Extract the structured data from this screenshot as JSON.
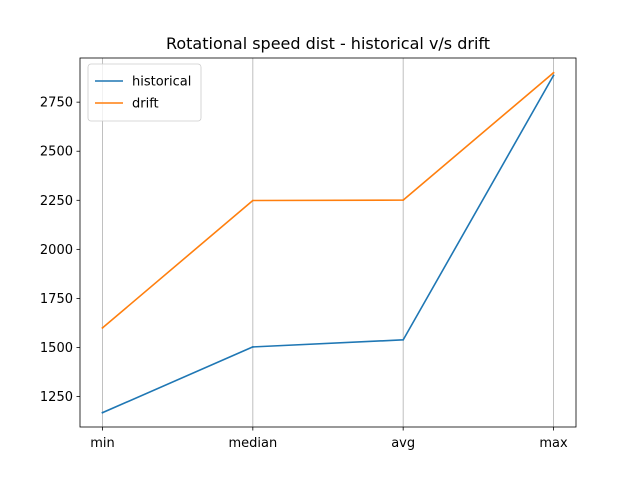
{
  "chart_data": {
    "type": "line",
    "title": "Rotational speed dist - historical v/s drift",
    "xlabel": "",
    "ylabel": "",
    "categories": [
      "min",
      "median",
      "avg",
      "max"
    ],
    "series": [
      {
        "name": "historical",
        "color": "#1f77b4",
        "values": [
          1168,
          1503,
          1539,
          2886
        ]
      },
      {
        "name": "drift",
        "color": "#ff7f0e",
        "values": [
          1600,
          2249,
          2251,
          2900
        ]
      }
    ],
    "ylim": [
      1095,
      2975
    ],
    "yticks": [
      1250,
      1500,
      1750,
      2000,
      2250,
      2500,
      2750
    ],
    "grid": {
      "x": true,
      "y": false
    },
    "legend": {
      "position": "top-left"
    }
  }
}
